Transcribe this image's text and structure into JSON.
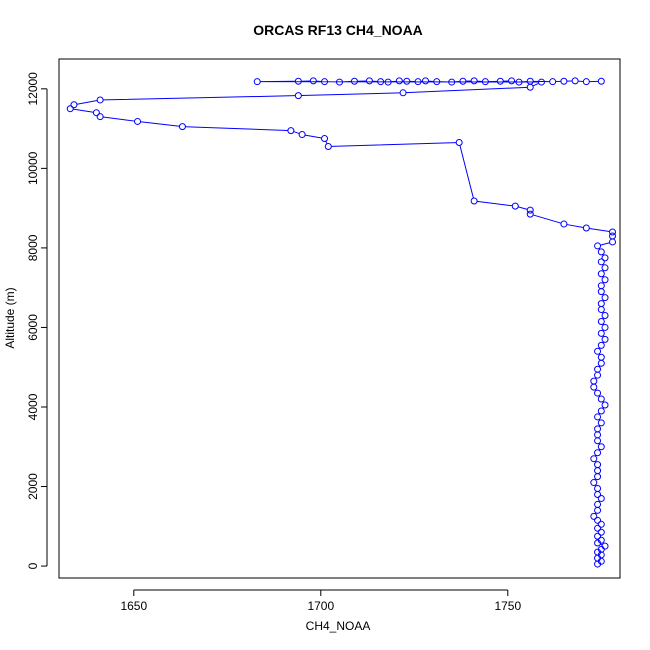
{
  "chart_data": {
    "type": "line",
    "title": "ORCAS RF13 CH4_NOAA",
    "xlabel": "CH4_NOAA",
    "ylabel": "Altitude (m)",
    "xlim": [
      1630,
      1780
    ],
    "ylim": [
      -300,
      12750
    ],
    "x_ticks": [
      1650,
      1700,
      1750
    ],
    "y_ticks": [
      0,
      2000,
      4000,
      6000,
      8000,
      10000,
      12000
    ],
    "grid": false,
    "legend": "none",
    "series_color": "#0000ff",
    "markers": "open-circle",
    "series": [
      {
        "x": [
          1774,
          1775,
          1774,
          1775,
          1774,
          1775,
          1776,
          1774,
          1775,
          1774,
          1775,
          1774,
          1775,
          1774,
          1773,
          1774,
          1774,
          1775,
          1774,
          1774,
          1773,
          1774,
          1774,
          1774,
          1773,
          1774,
          1775,
          1774,
          1774,
          1774,
          1775,
          1774,
          1775,
          1776,
          1775,
          1774,
          1773,
          1773,
          1774,
          1774,
          1775,
          1775,
          1774,
          1775,
          1776,
          1775,
          1776,
          1775,
          1776,
          1775,
          1775,
          1776,
          1775,
          1775,
          1776,
          1775,
          1776,
          1775,
          1776,
          1775,
          1774,
          1778,
          1778,
          1778,
          1771,
          1765,
          1756,
          1756,
          1752,
          1741,
          1737,
          1702,
          1701,
          1695,
          1692,
          1663,
          1651,
          1641,
          1640,
          1633,
          1634,
          1641,
          1694,
          1722,
          1756,
          1759,
          1683,
          1694,
          1698,
          1701,
          1705,
          1709,
          1713,
          1716,
          1718,
          1721,
          1723,
          1726,
          1728,
          1731,
          1735,
          1738,
          1741,
          1744,
          1748,
          1751,
          1753,
          1756,
          1762,
          1765,
          1768,
          1771,
          1775
        ],
        "y": [
          50,
          120,
          200,
          280,
          350,
          420,
          500,
          580,
          650,
          750,
          850,
          950,
          1050,
          1150,
          1250,
          1400,
          1550,
          1700,
          1800,
          1950,
          2100,
          2250,
          2400,
          2550,
          2700,
          2850,
          3000,
          3150,
          3300,
          3450,
          3600,
          3750,
          3900,
          4050,
          4200,
          4350,
          4500,
          4650,
          4800,
          4950,
          5100,
          5250,
          5400,
          5550,
          5700,
          5850,
          6000,
          6150,
          6300,
          6450,
          6600,
          6750,
          6900,
          7050,
          7200,
          7350,
          7500,
          7650,
          7750,
          7900,
          8050,
          8150,
          8300,
          8400,
          8500,
          8600,
          8850,
          8950,
          9050,
          9180,
          10650,
          10550,
          10750,
          10850,
          10950,
          11050,
          11180,
          11300,
          11400,
          11500,
          11600,
          11720,
          11830,
          11900,
          12040,
          12170,
          12180,
          12190,
          12200,
          12180,
          12170,
          12190,
          12200,
          12180,
          12170,
          12200,
          12190,
          12180,
          12200,
          12180,
          12170,
          12190,
          12200,
          12180,
          12190,
          12200,
          12170,
          12190,
          12180,
          12190,
          12200,
          12180,
          12190
        ]
      }
    ]
  }
}
